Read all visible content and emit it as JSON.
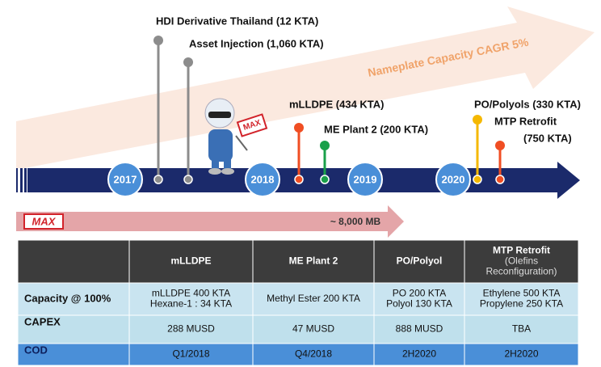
{
  "trend": {
    "label": "Nameplate Capacity CAGR 5%"
  },
  "timeline": {
    "years": [
      "2017",
      "2018",
      "2019",
      "2020"
    ]
  },
  "milestones": [
    {
      "lines": [
        "HDI Derivative Thailand (12 KTA)"
      ]
    },
    {
      "lines": [
        "Asset Injection (1,060 KTA)"
      ]
    },
    {
      "lines": [
        "mLLDPE (434 KTA)"
      ]
    },
    {
      "lines": [
        "ME Plant 2 (200 KTA)"
      ]
    },
    {
      "lines": [
        "PO/Polyols (330 KTA)"
      ]
    },
    {
      "lines": [
        "MTP Retrofit",
        "(750 KTA)"
      ]
    }
  ],
  "investment": {
    "logo": "MAX",
    "amount": "~ 8,000 MB"
  },
  "table": {
    "header": [
      [
        "mLLDPE"
      ],
      [
        "ME Plant 2"
      ],
      [
        "PO/Polyol"
      ],
      [
        "MTP Retrofit",
        "(Olefins",
        "Reconfiguration)"
      ]
    ],
    "rows": [
      {
        "label": "Capacity @ 100%",
        "cells": [
          [
            "mLLDPE 400 KTA",
            "Hexane-1 : 34 KTA"
          ],
          [
            "Methyl Ester 200 KTA"
          ],
          [
            "PO 200 KTA",
            "Polyol 130 KTA"
          ],
          [
            "Ethylene 500 KTA",
            "Propylene 250 KTA"
          ]
        ]
      },
      {
        "label": "CAPEX",
        "cells": [
          [
            "288 MUSD"
          ],
          [
            "47 MUSD"
          ],
          [
            "888 MUSD"
          ],
          [
            "TBA"
          ]
        ]
      },
      {
        "label": "COD",
        "cells": [
          [
            "Q1/2018"
          ],
          [
            "Q4/2018"
          ],
          [
            "2H2020"
          ],
          [
            "2H2020"
          ]
        ]
      }
    ]
  }
}
